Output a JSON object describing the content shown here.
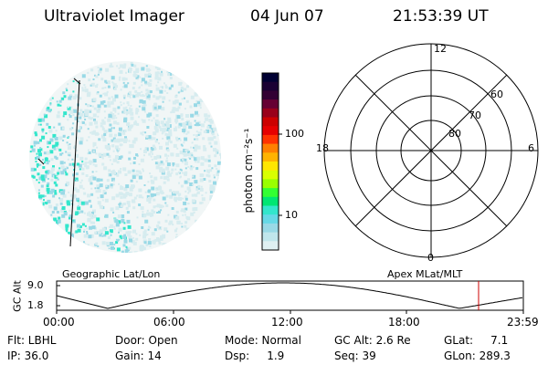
{
  "header": {
    "instrument": "Ultraviolet Imager",
    "date": "04 Jun 07",
    "time": "21:53:39 UT"
  },
  "colorbar": {
    "unit_label": "photon cm⁻²s⁻¹",
    "tick_labels": [
      "100",
      "10"
    ],
    "colors": [
      "#000033",
      "#1a0033",
      "#330033",
      "#660033",
      "#99001a",
      "#cc0000",
      "#e60000",
      "#ff3300",
      "#ff8000",
      "#ffb300",
      "#ffe600",
      "#d9ff00",
      "#99ff00",
      "#33ff33",
      "#00e673",
      "#33e6cc",
      "#66d9e6",
      "#99d9e6",
      "#c0e6ec",
      "#dff0f2"
    ]
  },
  "polar_grid": {
    "mlt_labels": {
      "top": "12",
      "left": "18",
      "right": "6",
      "bottom": "0"
    },
    "lat_labels": [
      "60",
      "70",
      "80"
    ]
  },
  "altitude_strip": {
    "axis_label": "GC Alt",
    "left_caption": "Geographic Lat/Lon",
    "right_caption": "Apex MLat/MLT",
    "y_ticks": [
      "9.0",
      "1.8"
    ],
    "time_ticks": [
      "00:00",
      "06:00",
      "12:00",
      "18:00",
      "23:59"
    ],
    "marker_color": "#cc0000"
  },
  "info": {
    "flt": "Flt: LBHL",
    "ip": "IP: 36.0",
    "door": "Door: Open",
    "gain": "Gain: 14",
    "mode": "Mode: Normal",
    "dsp": "Dsp:     1.9",
    "gc_alt": "GC Alt: 2.6 Re",
    "seq": "Seq: 39",
    "glat": "GLat:     7.1",
    "glon": "GLon: 289.3"
  }
}
